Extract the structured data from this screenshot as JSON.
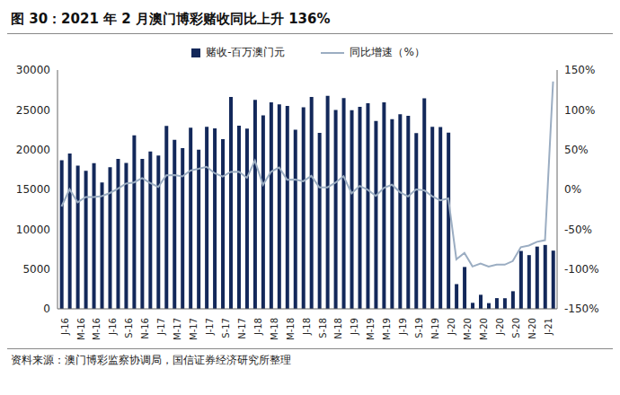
{
  "chart_data": {
    "type": "bar",
    "title": "图 30：2021 年 2 月澳门博彩赌收同比上升 136%",
    "source": "资料来源：澳门博彩监察协调局，国信证券经济研究所整理",
    "categories": [
      "J-16",
      null,
      "M-16",
      null,
      "M-16",
      null,
      "J-16",
      null,
      "S-16",
      null,
      "N-16",
      null,
      "J-17",
      null,
      "M-17",
      null,
      "M-17",
      null,
      "J-17",
      null,
      "S-17",
      null,
      "N-17",
      null,
      "J-18",
      null,
      "M-18",
      null,
      "M-18",
      null,
      "J-18",
      null,
      "S-18",
      null,
      "N-18",
      null,
      "J-19",
      null,
      "M-19",
      null,
      "M-19",
      null,
      "J-19",
      null,
      "S-19",
      null,
      "N-19",
      null,
      "J-20",
      null,
      "M-20",
      null,
      "M-20",
      null,
      "J-20",
      null,
      "S-20",
      null,
      "N-20",
      null,
      "J-21",
      null
    ],
    "series": [
      {
        "name": "赌收-百万澳门元",
        "type": "bar",
        "color": "#13285a",
        "values": [
          18672,
          19521,
          17981,
          17347,
          18297,
          15881,
          17799,
          18839,
          18329,
          21803,
          18826,
          19761,
          19255,
          22993,
          21229,
          20182,
          22764,
          19990,
          22877,
          22672,
          21303,
          26626,
          22998,
          22655,
          26260,
          24300,
          25951,
          25680,
          25489,
          22490,
          25327,
          26605,
          22097,
          26748,
          24990,
          26468,
          24942,
          25370,
          25840,
          23588,
          25952,
          23812,
          24453,
          24262,
          22079,
          26443,
          22877,
          22838,
          22126,
          3104,
          5257,
          754,
          1764,
          716,
          1344,
          1330,
          2211,
          7270,
          6748,
          7818,
          8024,
          7312
        ]
      },
      {
        "name": "同比增速（%）",
        "type": "line",
        "axis": "y2",
        "color": "#9badc2",
        "values": [
          -21.4,
          0.1,
          -16.3,
          -9.5,
          -9.6,
          -8.5,
          -4.5,
          1.1,
          7.4,
          8.8,
          14.2,
          8.0,
          3.1,
          17.8,
          18.1,
          16.3,
          23.7,
          25.9,
          28.5,
          20.4,
          16.1,
          22.1,
          22.2,
          14.6,
          36.2,
          5.7,
          22.2,
          27.6,
          12.1,
          12.5,
          10.3,
          17.1,
          2.5,
          2.6,
          8.5,
          16.6,
          -5.0,
          4.4,
          -0.4,
          -8.1,
          1.8,
          5.9,
          -3.5,
          -8.8,
          -0.1,
          -1.1,
          -8.5,
          -13.7,
          -11.3,
          -87.8,
          -79.7,
          -96.8,
          -93.2,
          -97.0,
          -94.5,
          -94.5,
          -90.0,
          -72.5,
          -70.5,
          -65.8,
          -63.8,
          135.6
        ]
      }
    ],
    "ylim": [
      0,
      30000
    ],
    "yticks": [
      0,
      5000,
      10000,
      15000,
      20000,
      25000,
      30000
    ],
    "y2lim": [
      -150,
      150
    ],
    "y2ticks": [
      {
        "value": -150,
        "label": "-150%"
      },
      {
        "value": -100,
        "label": "-100%"
      },
      {
        "value": -50,
        "label": "-50%"
      },
      {
        "value": 0,
        "label": "0%"
      },
      {
        "value": 50,
        "label": "50%"
      },
      {
        "value": 100,
        "label": "100%"
      },
      {
        "value": 150,
        "label": "150%"
      }
    ],
    "grid": false,
    "legend": "top"
  }
}
